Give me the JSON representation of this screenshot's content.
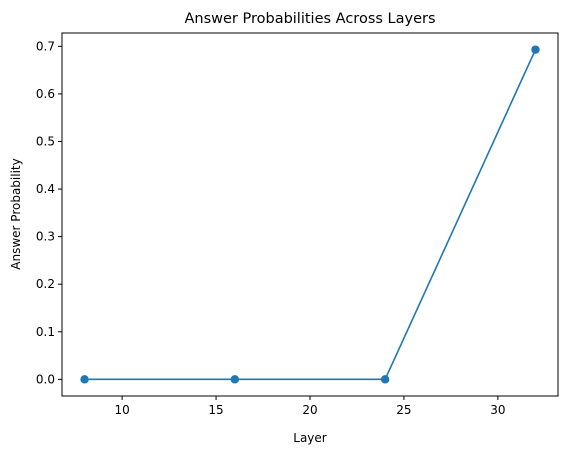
{
  "chart_data": {
    "type": "line",
    "title": "Answer Probabilities Across Layers",
    "xlabel": "Layer",
    "ylabel": "Answer Probability",
    "x": [
      8,
      16,
      24,
      32
    ],
    "series": [
      {
        "values": [
          0.0,
          0.0,
          0.0,
          0.693
        ],
        "color": "#1f77b4",
        "marker": "circle"
      }
    ],
    "xlim": [
      6.8,
      33.2
    ],
    "ylim": [
      -0.035,
      0.728
    ],
    "xticks": [
      10,
      15,
      20,
      25,
      30
    ],
    "xtick_labels": [
      "10",
      "15",
      "20",
      "25",
      "30"
    ],
    "yticks": [
      0.0,
      0.1,
      0.2,
      0.3,
      0.4,
      0.5,
      0.6,
      0.7
    ],
    "ytick_labels": [
      "0.0",
      "0.1",
      "0.2",
      "0.3",
      "0.4",
      "0.5",
      "0.6",
      "0.7"
    ],
    "grid": false,
    "legend": false
  }
}
